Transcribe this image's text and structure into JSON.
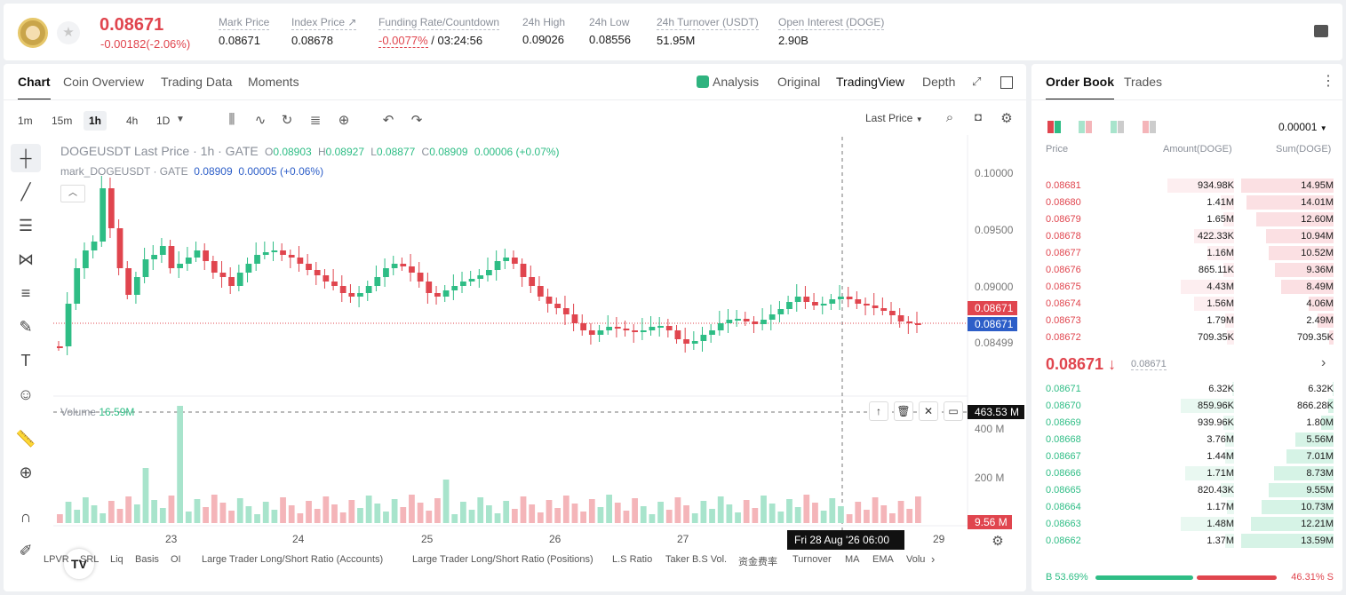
{
  "header": {
    "price": "0.08671",
    "change": "-0.00182(-2.06%)",
    "stats": [
      {
        "label": "Mark Price",
        "value": "0.08671"
      },
      {
        "label": "Index Price ↗",
        "value": "0.08678"
      },
      {
        "label": "Funding Rate/Countdown",
        "value_red": "-0.0077%",
        "value": " / 03:24:56"
      },
      {
        "label": "24h High",
        "value": "0.09026"
      },
      {
        "label": "24h Low",
        "value": "0.08556"
      },
      {
        "label": "24h Turnover (USDT)",
        "value": "51.95M"
      },
      {
        "label": "Open Interest (DOGE)",
        "value": "2.90B"
      }
    ]
  },
  "tabs": {
    "left": [
      "Chart",
      "Coin Overview",
      "Trading Data",
      "Moments"
    ],
    "right": [
      "Analysis",
      "Original",
      "TradingView",
      "Depth"
    ]
  },
  "toolbar": {
    "timeframes": [
      "1m",
      "15m",
      "1h",
      "4h",
      "1D"
    ],
    "price_source": "Last Price"
  },
  "legend": {
    "symbol": "DOGEUSDT Last Price · 1h · GATE",
    "o": "0.08903",
    "h": "0.08927",
    "l": "0.08877",
    "c": "0.08909",
    "chg": "0.00006 (+0.07%)",
    "mark_label": "mark_DOGEUSDT · GATE",
    "mark_val": "0.08909",
    "mark_chg": "0.00005 (+0.06%)",
    "volume_label": "Volume",
    "volume_val": "16.59M"
  },
  "y_axis": [
    "0.10000",
    "0.09500",
    "0.09000",
    "0.08499"
  ],
  "price_tags": {
    "last": "0.08671",
    "mark": "0.08671",
    "vol_cursor": "463.53 M",
    "vol_last": "9.56 M"
  },
  "vol_axis": [
    "400 M",
    "200 M"
  ],
  "x_axis": [
    "23",
    "24",
    "25",
    "26",
    "27",
    "29"
  ],
  "x_cursor": "Fri 28 Aug '26   06:00",
  "indicators": [
    "LPVR",
    "SRL",
    "Liq",
    "Basis",
    "OI",
    "Large Trader Long/Short Ratio (Accounts)",
    "Large Trader Long/Short Ratio (Positions)",
    "L.S Ratio",
    "Taker B.S Vol.",
    "资金费率",
    "Turnover",
    "MA",
    "EMA",
    "Volu"
  ],
  "orderbook": {
    "tabs": [
      "Order Book",
      "Trades"
    ],
    "precision": "0.00001",
    "headers": [
      "Price",
      "Amount(DOGE)",
      "Sum(DOGE)"
    ],
    "asks": [
      {
        "price": "0.08681",
        "amount": "934.98K",
        "sum": "14.95M",
        "af": 0.75,
        "sf": 1.0
      },
      {
        "price": "0.08680",
        "amount": "1.41M",
        "sum": "14.01M",
        "af": 0.15,
        "sf": 0.94
      },
      {
        "price": "0.08679",
        "amount": "1.65M",
        "sum": "12.60M",
        "af": 0.12,
        "sf": 0.84
      },
      {
        "price": "0.08678",
        "amount": "422.33K",
        "sum": "10.94M",
        "af": 0.45,
        "sf": 0.73
      },
      {
        "price": "0.08677",
        "amount": "1.16M",
        "sum": "10.52M",
        "af": 0.3,
        "sf": 0.7
      },
      {
        "price": "0.08676",
        "amount": "865.11K",
        "sum": "9.36M",
        "af": 0.12,
        "sf": 0.63
      },
      {
        "price": "0.08675",
        "amount": "4.43M",
        "sum": "8.49M",
        "af": 0.6,
        "sf": 0.57
      },
      {
        "price": "0.08674",
        "amount": "1.56M",
        "sum": "4.06M",
        "af": 0.45,
        "sf": 0.27
      },
      {
        "price": "0.08673",
        "amount": "1.79M",
        "sum": "2.49M",
        "af": 0.1,
        "sf": 0.17
      },
      {
        "price": "0.08672",
        "amount": "709.35K",
        "sum": "709.35K",
        "af": 0.08,
        "sf": 0.05
      }
    ],
    "mid_price": "0.08671 ↓",
    "mid_mark": "0.08671",
    "bids": [
      {
        "price": "0.08671",
        "amount": "6.32K",
        "sum": "6.32K",
        "af": 0.02,
        "sf": 0.01
      },
      {
        "price": "0.08670",
        "amount": "859.96K",
        "sum": "866.28K",
        "af": 0.6,
        "sf": 0.06
      },
      {
        "price": "0.08669",
        "amount": "939.96K",
        "sum": "1.80M",
        "af": 0.12,
        "sf": 0.13
      },
      {
        "price": "0.08668",
        "amount": "3.76M",
        "sum": "5.56M",
        "af": 0.1,
        "sf": 0.41
      },
      {
        "price": "0.08667",
        "amount": "1.44M",
        "sum": "7.01M",
        "af": 0.1,
        "sf": 0.51
      },
      {
        "price": "0.08666",
        "amount": "1.71M",
        "sum": "8.73M",
        "af": 0.55,
        "sf": 0.64
      },
      {
        "price": "0.08665",
        "amount": "820.43K",
        "sum": "9.55M",
        "af": 0.15,
        "sf": 0.7
      },
      {
        "price": "0.08664",
        "amount": "1.17M",
        "sum": "10.73M",
        "af": 0.08,
        "sf": 0.78
      },
      {
        "price": "0.08663",
        "amount": "1.48M",
        "sum": "12.21M",
        "af": 0.6,
        "sf": 0.89
      },
      {
        "price": "0.08662",
        "amount": "1.37M",
        "sum": "13.59M",
        "af": 0.1,
        "sf": 1.0
      }
    ],
    "buy_ratio": "B 53.69%",
    "sell_ratio": "46.31% S",
    "buy_frac": 0.5369
  },
  "colors": {
    "up": "#2ebd85",
    "down": "#e0454e",
    "mark": "#2d5ec8"
  }
}
